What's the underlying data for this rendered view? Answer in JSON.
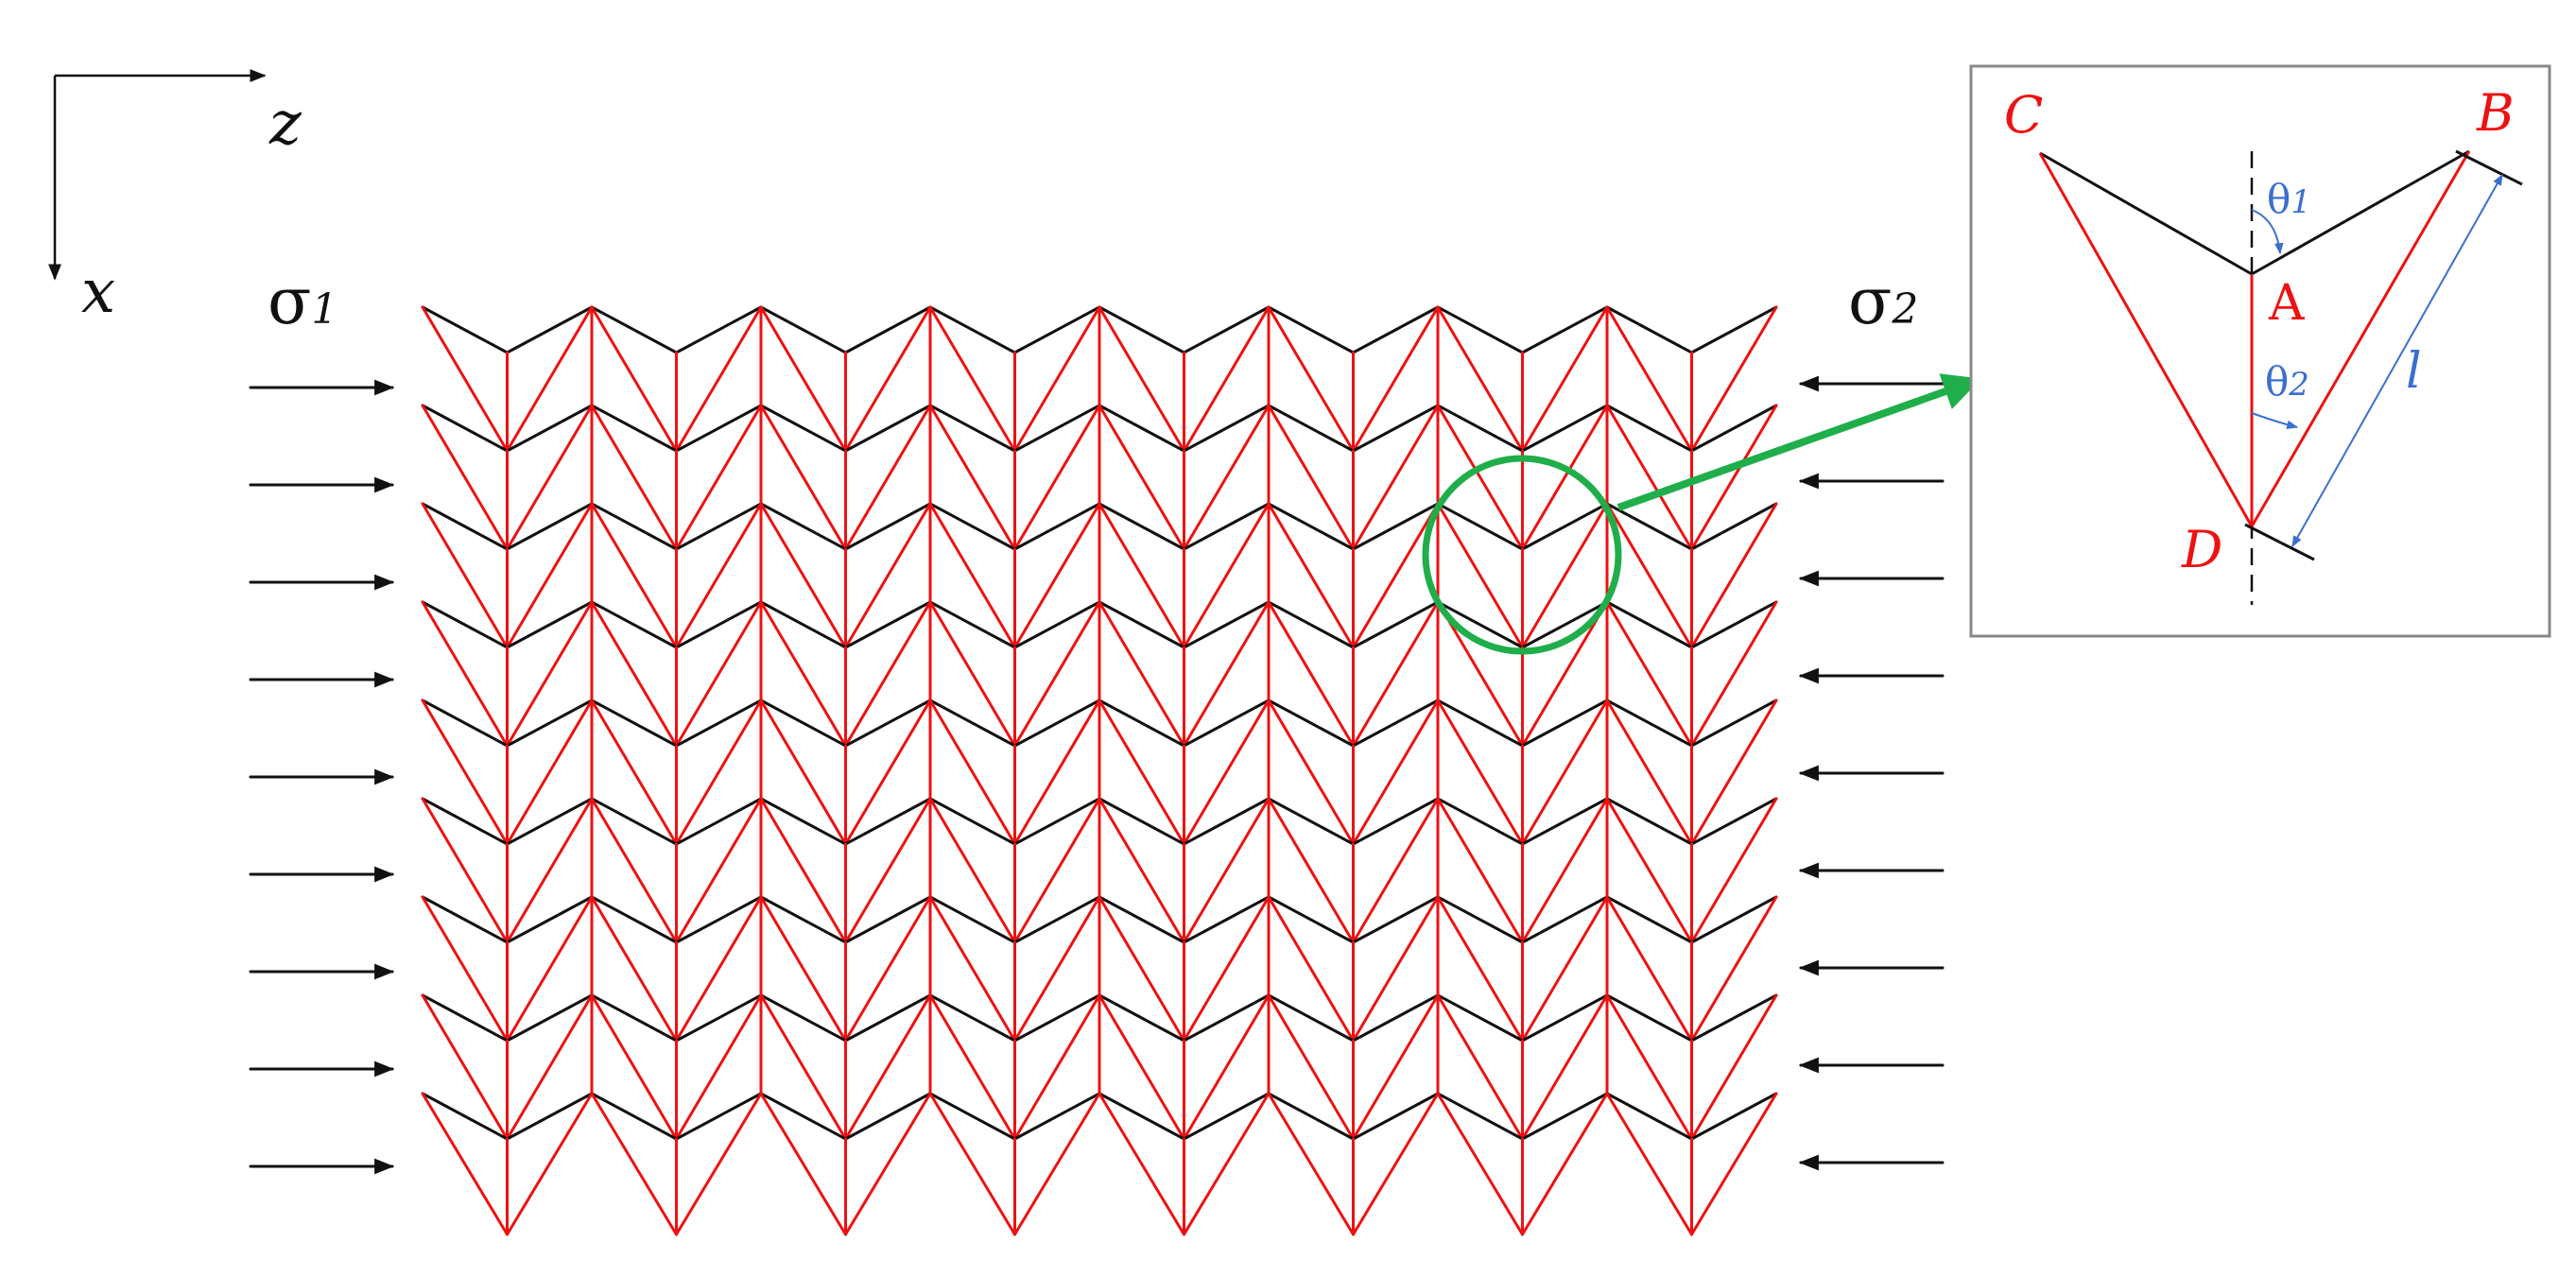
{
  "figure": {
    "axes": {
      "horizontal_label": "z",
      "vertical_label": "x"
    },
    "stress_left": {
      "symbol": "σ",
      "subscript": "1",
      "arrow_count": 9
    },
    "stress_right": {
      "symbol": "σ",
      "subscript": "2",
      "arrow_count": 9
    },
    "lattice": {
      "columns": 8,
      "rows": 9
    },
    "inset": {
      "points": {
        "A": "A",
        "B": "B",
        "C": "C",
        "D": "D"
      },
      "angle_1": {
        "symbol": "θ",
        "subscript": "1"
      },
      "angle_2": {
        "symbol": "θ",
        "subscript": "2"
      },
      "length": "l"
    },
    "colors": {
      "fold_black": "#111111",
      "fold_red": "#ee1111",
      "highlight_green": "#1fae4a",
      "dimension_blue": "#3a6fd0",
      "inset_border": "#888888"
    }
  }
}
